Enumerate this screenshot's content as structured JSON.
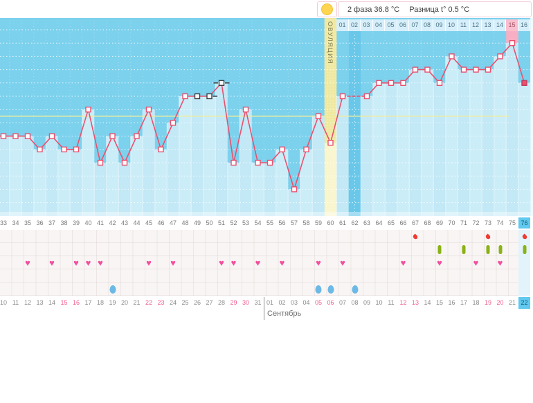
{
  "header": {
    "phase_stats": "2 фаза 36.8 °C",
    "diff_stats": "Разница t° 0.5 °C",
    "ovulation_icon": "yellow-circle"
  },
  "ovulation_label": "ОВУЛЯЦИЯ",
  "month_label": "Сентябрь",
  "colors": {
    "line": "#E9516F",
    "chart_bg": "#7CD1ED",
    "fill_under_line": "#C5E9F7",
    "no_data_column": "#69C8EA",
    "ovulation_band": "#EFE8A0",
    "highlight_pink_column": "#F8AEC3",
    "today_blue": "#5FC9EF",
    "coverline": "#F0ED9B",
    "heart": "#F2509E",
    "blood_drop": "#EF3B33",
    "medication_pill": "#8AB216",
    "discharge_drop": "#6CB9E6",
    "weekend_text": "#F15F8D"
  },
  "chart_data": {
    "type": "line",
    "title": "",
    "xlabel": "cycle day (top row = phase-2 day, bottom row = calendar date)",
    "ylabel": "basal temperature °C (unlabeled axis, 0.1 °C per gridline)",
    "x_range": [
      33,
      76
    ],
    "ylim": [
      35.7,
      37.2
    ],
    "grid": "horizontal dotted, 0.1 °C step",
    "coverline_c": 36.45,
    "phase2_avg_c": 36.8,
    "temp_diff_c": 0.5,
    "ovulation_cycle_day": 60,
    "today_cycle_day": 76,
    "days": [
      {
        "cycle": 33,
        "date": "10",
        "temp": 36.3
      },
      {
        "cycle": 34,
        "date": "11",
        "temp": 36.3
      },
      {
        "cycle": 35,
        "date": "12",
        "temp": 36.3,
        "events": [
          "intercourse"
        ]
      },
      {
        "cycle": 36,
        "date": "13",
        "temp": 36.2
      },
      {
        "cycle": 37,
        "date": "14",
        "temp": 36.3,
        "events": [
          "intercourse"
        ]
      },
      {
        "cycle": 38,
        "date": "15",
        "temp": 36.2,
        "weekend": true
      },
      {
        "cycle": 39,
        "date": "16",
        "temp": 36.2,
        "weekend": true,
        "events": [
          "intercourse"
        ]
      },
      {
        "cycle": 40,
        "date": "17",
        "temp": 36.5,
        "events": [
          "intercourse"
        ]
      },
      {
        "cycle": 41,
        "date": "18",
        "temp": 36.1,
        "events": [
          "intercourse"
        ]
      },
      {
        "cycle": 42,
        "date": "19",
        "temp": 36.3,
        "events": [
          "discharge"
        ]
      },
      {
        "cycle": 43,
        "date": "20",
        "temp": 36.1
      },
      {
        "cycle": 44,
        "date": "21",
        "temp": 36.3
      },
      {
        "cycle": 45,
        "date": "22",
        "temp": 36.5,
        "weekend": true,
        "events": [
          "intercourse"
        ]
      },
      {
        "cycle": 46,
        "date": "23",
        "temp": 36.2,
        "weekend": true
      },
      {
        "cycle": 47,
        "date": "24",
        "temp": 36.4,
        "events": [
          "intercourse"
        ]
      },
      {
        "cycle": 48,
        "date": "25",
        "temp": 36.6
      },
      {
        "cycle": 49,
        "date": "26",
        "temp": 36.6,
        "marker": "black"
      },
      {
        "cycle": 50,
        "date": "27",
        "temp": 36.6,
        "marker": "black",
        "whiskers": "r"
      },
      {
        "cycle": 51,
        "date": "28",
        "temp": 36.7,
        "marker": "black",
        "whiskers": "lr",
        "events": [
          "intercourse"
        ]
      },
      {
        "cycle": 52,
        "date": "29",
        "temp": 36.1,
        "weekend": true,
        "events": [
          "intercourse"
        ]
      },
      {
        "cycle": 53,
        "date": "30",
        "temp": 36.5,
        "weekend": true
      },
      {
        "cycle": 54,
        "date": "31",
        "temp": 36.1,
        "events": [
          "intercourse"
        ]
      },
      {
        "cycle": 55,
        "date": "01",
        "month_start": true,
        "temp": 36.1
      },
      {
        "cycle": 56,
        "date": "02",
        "temp": 36.2,
        "events": [
          "intercourse"
        ]
      },
      {
        "cycle": 57,
        "date": "03",
        "temp": 35.9
      },
      {
        "cycle": 58,
        "date": "04",
        "temp": 36.2
      },
      {
        "cycle": 59,
        "date": "05",
        "temp": 36.45,
        "weekend": true,
        "events": [
          "intercourse",
          "discharge"
        ]
      },
      {
        "cycle": 60,
        "date": "06",
        "temp": 36.25,
        "weekend": true,
        "ovulation": true,
        "events": [
          "discharge"
        ]
      },
      {
        "cycle": 61,
        "phase2": "01",
        "date": "07",
        "temp": 36.6,
        "events": [
          "intercourse"
        ]
      },
      {
        "cycle": 62,
        "phase2": "02",
        "date": "08",
        "temp": null,
        "events": [
          "discharge"
        ]
      },
      {
        "cycle": 63,
        "phase2": "03",
        "date": "09",
        "temp": 36.6
      },
      {
        "cycle": 64,
        "phase2": "04",
        "date": "10",
        "temp": 36.7
      },
      {
        "cycle": 65,
        "phase2": "05",
        "date": "11",
        "temp": 36.7
      },
      {
        "cycle": 66,
        "phase2": "06",
        "date": "12",
        "temp": 36.7,
        "weekend": true,
        "events": [
          "intercourse"
        ]
      },
      {
        "cycle": 67,
        "phase2": "07",
        "date": "13",
        "temp": 36.8,
        "weekend": true,
        "events": [
          "spotting"
        ]
      },
      {
        "cycle": 68,
        "phase2": "08",
        "date": "14",
        "temp": 36.8
      },
      {
        "cycle": 69,
        "phase2": "09",
        "date": "15",
        "temp": 36.7,
        "events": [
          "intercourse",
          "medication"
        ]
      },
      {
        "cycle": 70,
        "phase2": "10",
        "date": "16",
        "temp": 36.9
      },
      {
        "cycle": 71,
        "phase2": "11",
        "date": "17",
        "temp": 36.8,
        "events": [
          "medication"
        ]
      },
      {
        "cycle": 72,
        "phase2": "12",
        "date": "18",
        "temp": 36.8,
        "events": [
          "intercourse"
        ]
      },
      {
        "cycle": 73,
        "phase2": "13",
        "date": "19",
        "temp": 36.8,
        "weekend": true,
        "events": [
          "spotting",
          "medication"
        ]
      },
      {
        "cycle": 74,
        "phase2": "14",
        "date": "20",
        "temp": 36.9,
        "weekend": true,
        "events": [
          "intercourse",
          "medication"
        ]
      },
      {
        "cycle": 75,
        "phase2": "15",
        "date": "21",
        "temp": 37.0,
        "highlight": true
      },
      {
        "cycle": 76,
        "phase2": "16",
        "date": "22",
        "temp": 36.7,
        "today": true,
        "events": [
          "spotting",
          "medication"
        ]
      }
    ]
  }
}
